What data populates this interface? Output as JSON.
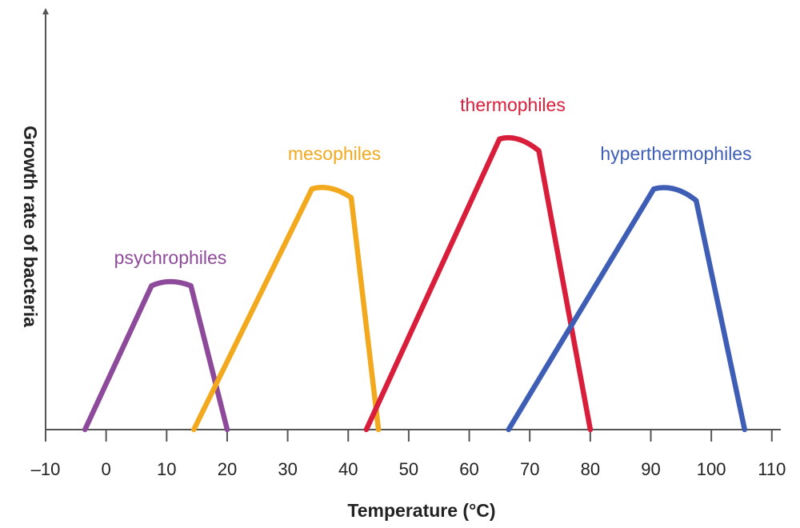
{
  "chart_data": {
    "type": "line",
    "xlabel": "Temperature (°C)",
    "ylabel": "Growth rate of bacteria",
    "xlim": [
      -10,
      110
    ],
    "ylim": [
      0,
      1
    ],
    "grid": false,
    "legend": "none",
    "x_ticks": [
      "–10",
      "0",
      "10",
      "20",
      "30",
      "40",
      "50",
      "60",
      "70",
      "80",
      "90",
      "100",
      "110"
    ],
    "series": [
      {
        "name": "psychrophiles",
        "color": "#8E4A9A",
        "points": [
          [
            -3.5,
            0
          ],
          [
            7.5,
            0.49
          ],
          [
            10.5,
            0.51
          ],
          [
            14,
            0.49
          ],
          [
            20,
            0
          ]
        ]
      },
      {
        "name": "mesophiles",
        "color": "#F2A91E",
        "points": [
          [
            14.5,
            0
          ],
          [
            34,
            0.82
          ],
          [
            37,
            0.83
          ],
          [
            40.5,
            0.79
          ],
          [
            45,
            0
          ]
        ]
      },
      {
        "name": "thermophiles",
        "color": "#D81E3A",
        "points": [
          [
            43,
            0
          ],
          [
            65,
            0.99
          ],
          [
            68,
            1.0
          ],
          [
            71.5,
            0.95
          ],
          [
            80,
            0
          ]
        ]
      },
      {
        "name": "hyperthermophiles",
        "color": "#3E5DB5",
        "points": [
          [
            66.5,
            0
          ],
          [
            90.5,
            0.82
          ],
          [
            94,
            0.83
          ],
          [
            97.5,
            0.78
          ],
          [
            105.5,
            0
          ]
        ]
      }
    ]
  }
}
